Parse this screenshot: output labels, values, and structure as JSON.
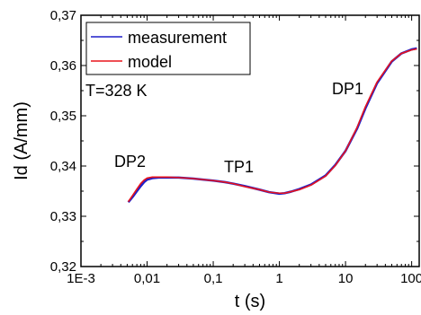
{
  "chart_data": {
    "type": "line",
    "title": "",
    "xlabel": "t (s)",
    "ylabel": "Id (A/mm)",
    "x_scale": "log",
    "xlim": [
      0.001,
      130
    ],
    "ylim": [
      0.32,
      0.37
    ],
    "x_ticks": [
      0.001,
      0.01,
      0.1,
      1,
      10,
      100
    ],
    "x_tick_labels": [
      "1E-3",
      "0,01",
      "0,1",
      "1",
      "10",
      "100"
    ],
    "y_ticks": [
      0.32,
      0.33,
      0.34,
      0.35,
      0.36,
      0.37
    ],
    "y_tick_labels": [
      "0,32",
      "0,33",
      "0,34",
      "0,35",
      "0,36",
      "0,37"
    ],
    "grid": false,
    "legend": "top-left",
    "annotations": [
      {
        "text": "T=328 K",
        "x": 0.0012,
        "y": 0.3513
      },
      {
        "text": "DP2",
        "x": 0.0048,
        "y": 0.3391
      },
      {
        "text": "TP1",
        "x": 0.18,
        "y": 0.3385
      },
      {
        "text": "DP1",
        "x": 11,
        "y": 0.3536
      }
    ],
    "series": [
      {
        "name": "measurement",
        "color": "#1f1fc8",
        "x": [
          0.0052,
          0.006,
          0.007,
          0.008,
          0.009,
          0.01,
          0.012,
          0.015,
          0.02,
          0.03,
          0.05,
          0.07,
          0.1,
          0.15,
          0.2,
          0.3,
          0.5,
          0.7,
          1,
          1.2,
          1.5,
          2,
          3,
          5,
          7,
          10,
          15,
          20,
          30,
          50,
          70,
          100,
          120
        ],
        "y": [
          0.3328,
          0.3338,
          0.335,
          0.336,
          0.3368,
          0.3373,
          0.3376,
          0.3377,
          0.3377,
          0.3377,
          0.3375,
          0.3373,
          0.3371,
          0.3368,
          0.3365,
          0.336,
          0.3353,
          0.3348,
          0.3345,
          0.3346,
          0.3349,
          0.3354,
          0.3363,
          0.3381,
          0.3402,
          0.343,
          0.3475,
          0.3515,
          0.3565,
          0.3608,
          0.3624,
          0.3632,
          0.3634
        ]
      },
      {
        "name": "model",
        "color": "#e8131c",
        "x": [
          0.0052,
          0.006,
          0.007,
          0.008,
          0.009,
          0.01,
          0.012,
          0.015,
          0.02,
          0.03,
          0.05,
          0.07,
          0.1,
          0.15,
          0.2,
          0.3,
          0.5,
          0.7,
          1,
          1.2,
          1.5,
          2,
          3,
          5,
          7,
          10,
          15,
          20,
          30,
          50,
          70,
          100,
          120
        ],
        "y": [
          0.3329,
          0.3341,
          0.3354,
          0.3365,
          0.3372,
          0.3376,
          0.3378,
          0.3378,
          0.3378,
          0.3377,
          0.3375,
          0.3373,
          0.3371,
          0.3368,
          0.3365,
          0.3359,
          0.3353,
          0.3348,
          0.3346,
          0.3346,
          0.3349,
          0.3353,
          0.3362,
          0.338,
          0.3401,
          0.343,
          0.3477,
          0.3518,
          0.3567,
          0.3609,
          0.3624,
          0.3631,
          0.3633
        ]
      }
    ]
  }
}
